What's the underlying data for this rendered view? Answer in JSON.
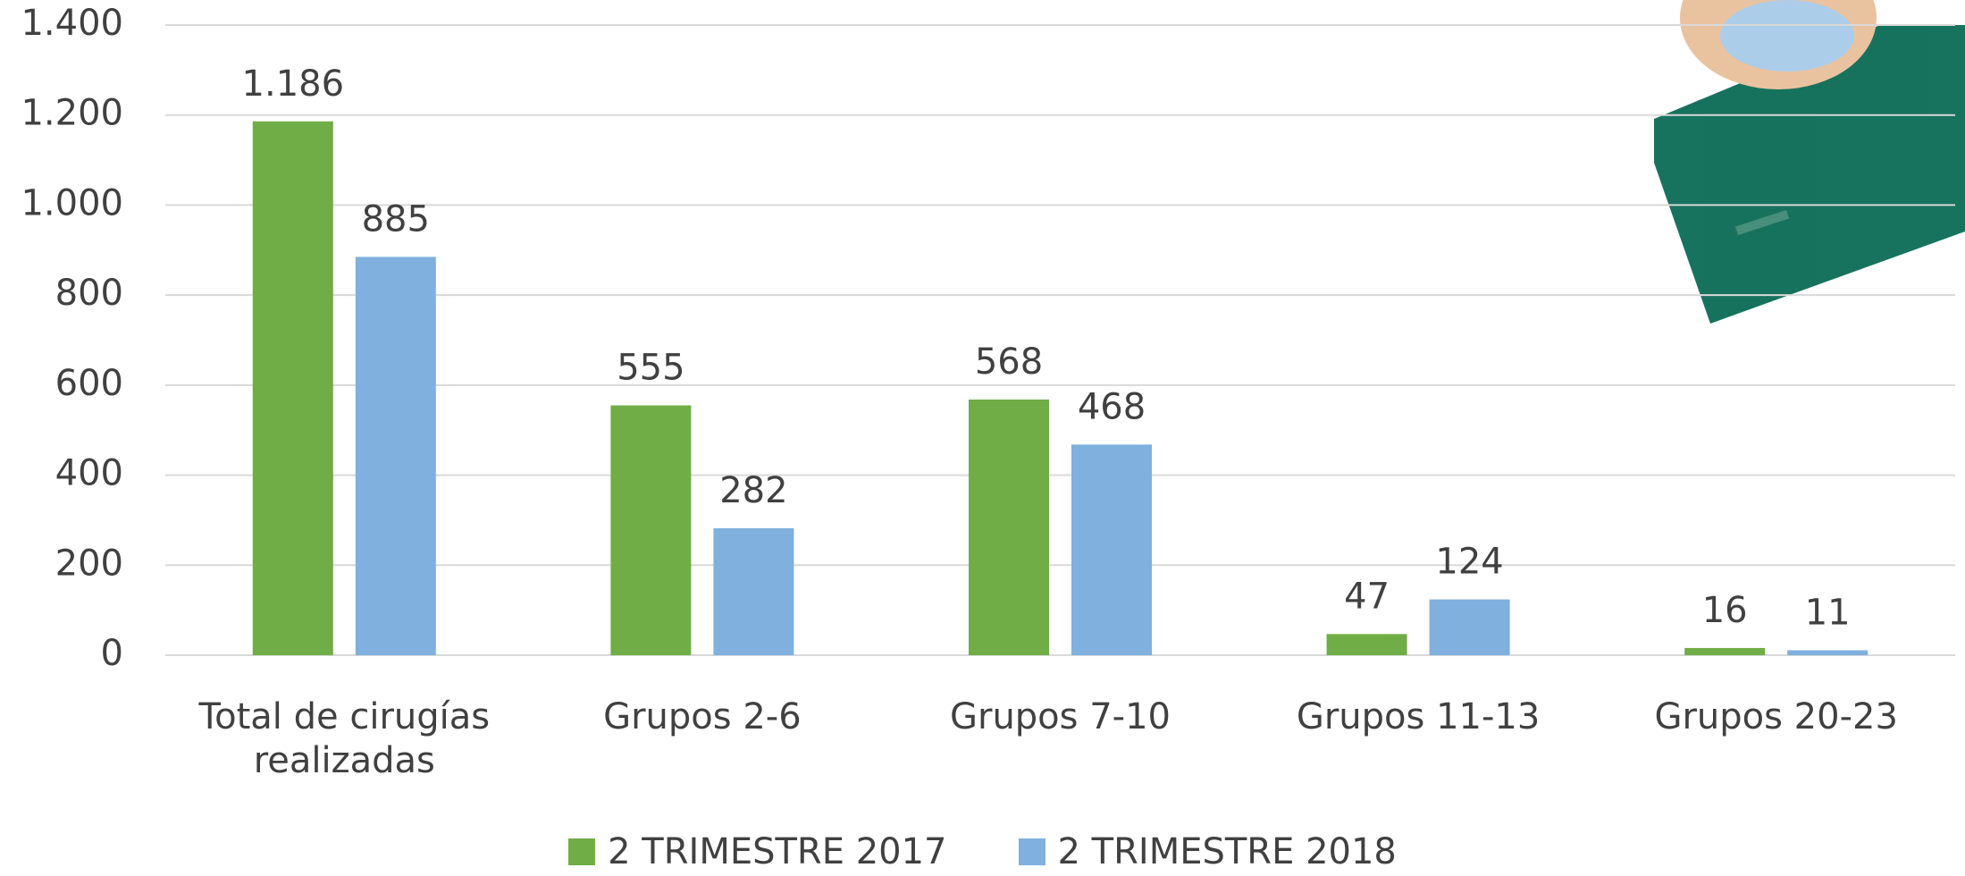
{
  "chart_data": {
    "type": "bar",
    "categories": [
      "Total de cirugías realizadas",
      "Grupos 2-6",
      "Grupos 7-10",
      "Grupos 11-13",
      "Grupos 20-23"
    ],
    "series": [
      {
        "name": "2 TRIMESTRE 2017",
        "color": "#70ad47",
        "values": [
          1186,
          555,
          568,
          47,
          16
        ],
        "value_labels": [
          "1.186",
          "555",
          "568",
          "47",
          "16"
        ]
      },
      {
        "name": "2 TRIMESTRE 2018",
        "color": "#7fb0de",
        "values": [
          885,
          282,
          468,
          124,
          11
        ],
        "value_labels": [
          "885",
          "282",
          "468",
          "124",
          "11"
        ]
      }
    ],
    "ylim": [
      0,
      1400
    ],
    "yticks": [
      0,
      200,
      400,
      600,
      800,
      {
        "value": 1000,
        "label": "1.000"
      },
      {
        "value": 1200,
        "label": "1.200"
      },
      {
        "value": 1400,
        "label": "1.400"
      }
    ],
    "grid": true,
    "legend": "bottom"
  }
}
